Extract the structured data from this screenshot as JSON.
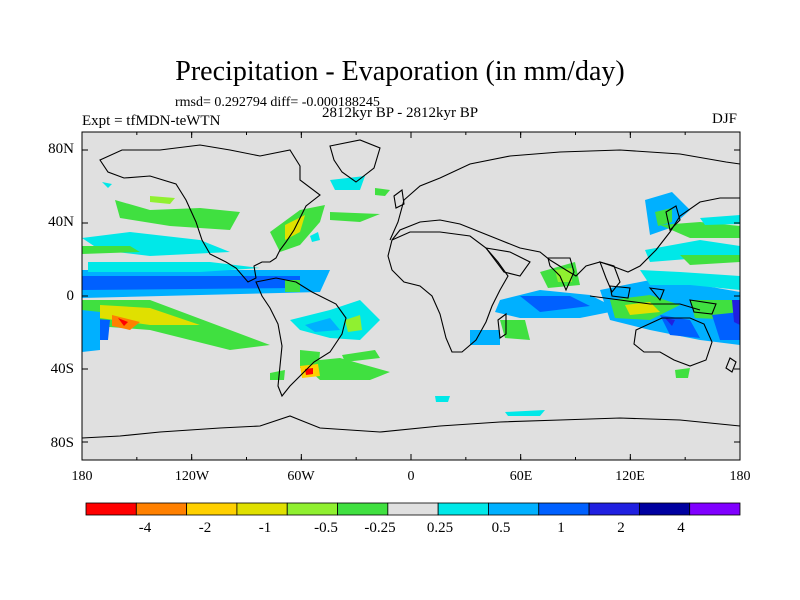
{
  "title": "Precipitation - Evaporation (in mm/day)",
  "stats_text": "rmsd= 0.292794 diff= -0.000188245",
  "experiment_label": "Expt = tfMDN-teWTN",
  "period_label": "2812kyr BP - 2812kyr BP",
  "season_label": "DJF",
  "y_axis_ticks": [
    "80N",
    "40N",
    "0",
    "40S",
    "80S"
  ],
  "x_axis_ticks": [
    "180",
    "120W",
    "60W",
    "0",
    "60E",
    "120E",
    "180"
  ],
  "colorbar": {
    "colors": [
      "#ff0000",
      "#ff8000",
      "#ffd000",
      "#e0e000",
      "#90f030",
      "#40e040",
      "#e0e0e0",
      "#00e8e8",
      "#00b0ff",
      "#0060ff",
      "#2020e0",
      "#0000a0",
      "#8000ff"
    ],
    "labels": [
      "-4",
      "-2",
      "-1",
      "-0.5",
      "-0.25",
      "0.25",
      "0.5",
      "1",
      "2",
      "4"
    ]
  },
  "ocean_fill": "#e0e0e0"
}
